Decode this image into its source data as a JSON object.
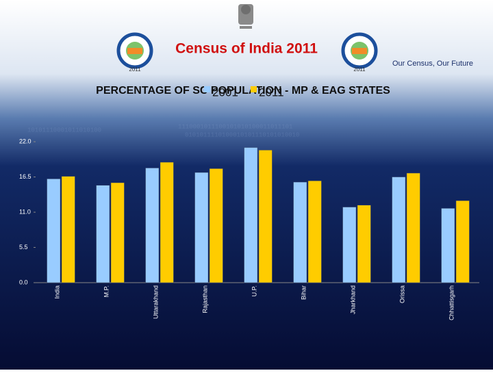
{
  "header": {
    "title": "Census of India 2011",
    "tagline": "Our Census, Our Future",
    "logo_year": "2011"
  },
  "chart_data": {
    "type": "bar",
    "title": "PERCENTAGE OF SC POPULATION - MP & EAG STATES",
    "categories": [
      "India",
      "M.P.",
      "Uttarakhand",
      "Rajasthan",
      "U.P.",
      "Bihar",
      "Jharkhand",
      "Orissa",
      "Chhattisgarh"
    ],
    "series": [
      {
        "name": "2001",
        "color": "#99ccff",
        "values": [
          16.2,
          15.2,
          17.9,
          17.2,
          21.1,
          15.7,
          11.8,
          16.5,
          11.6
        ]
      },
      {
        "name": "2011",
        "color": "#ffcc00",
        "values": [
          16.6,
          15.6,
          18.8,
          17.8,
          20.7,
          15.9,
          12.1,
          17.1,
          12.8
        ]
      }
    ],
    "ylim": [
      0,
      25
    ],
    "yticks": [
      {
        "value": 0,
        "label": "0.0"
      },
      {
        "value": 5.5,
        "label": "5.5"
      },
      {
        "value": 11,
        "label": "11.0"
      },
      {
        "value": 16.5,
        "label": "16.5"
      },
      {
        "value": 22,
        "label": "22.0"
      }
    ],
    "grid": false
  }
}
